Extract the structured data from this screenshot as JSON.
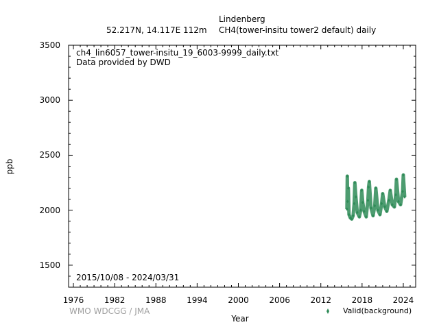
{
  "header": {
    "station": "Lindenberg",
    "location": "52.217N, 14.117E 112m",
    "parameter": "CH4(tower-insitu tower2 default) daily"
  },
  "annotations": {
    "filename": "ch4_lin6057_tower-insitu_19_6003-9999_daily.txt",
    "provider": "Data provided by DWD",
    "period": "2015/10/08 - 2024/03/31"
  },
  "footer": {
    "credit": "WMO WDCGG / JMA"
  },
  "colors": {
    "series": "#2e8b57",
    "credit": "#a0a0a0"
  },
  "chart_data": {
    "type": "scatter",
    "xlabel": "Year",
    "ylabel": "ppb",
    "xlim": [
      1975.3,
      2025.8
    ],
    "ylim": [
      1300,
      3500
    ],
    "xticks": [
      1976,
      1982,
      1988,
      1994,
      2000,
      2006,
      2012,
      2018,
      2024
    ],
    "yticks": [
      1500,
      2000,
      2500,
      3000,
      3500
    ],
    "grid": false,
    "legend": "bottom-right",
    "series": [
      {
        "name": "Valid(background)",
        "marker": "diamond",
        "range": [
          "2015-10-08",
          "2024-03-31"
        ],
        "points": [
          [
            2015.8,
            2010
          ],
          [
            2015.85,
            2310
          ],
          [
            2015.9,
            2080
          ],
          [
            2016.0,
            2200
          ],
          [
            2016.1,
            1960
          ],
          [
            2016.3,
            1930
          ],
          [
            2016.5,
            1920
          ],
          [
            2016.7,
            1950
          ],
          [
            2016.85,
            2060
          ],
          [
            2016.95,
            2250
          ],
          [
            2017.1,
            2120
          ],
          [
            2017.3,
            1980
          ],
          [
            2017.6,
            1940
          ],
          [
            2017.8,
            2000
          ],
          [
            2017.95,
            2180
          ],
          [
            2018.1,
            2070
          ],
          [
            2018.3,
            1990
          ],
          [
            2018.6,
            1940
          ],
          [
            2018.85,
            2090
          ],
          [
            2018.95,
            2210
          ],
          [
            2019.05,
            2260
          ],
          [
            2019.3,
            2020
          ],
          [
            2019.6,
            1950
          ],
          [
            2019.85,
            2040
          ],
          [
            2020.0,
            2200
          ],
          [
            2020.3,
            2000
          ],
          [
            2020.6,
            1960
          ],
          [
            2020.85,
            2060
          ],
          [
            2021.0,
            2150
          ],
          [
            2021.3,
            2030
          ],
          [
            2021.6,
            1990
          ],
          [
            2021.9,
            2090
          ],
          [
            2022.1,
            2180
          ],
          [
            2022.4,
            2050
          ],
          [
            2022.7,
            2030
          ],
          [
            2022.9,
            2140
          ],
          [
            2023.0,
            2280
          ],
          [
            2023.3,
            2080
          ],
          [
            2023.6,
            2050
          ],
          [
            2023.9,
            2170
          ],
          [
            2024.0,
            2320
          ],
          [
            2024.2,
            2120
          ]
        ]
      }
    ]
  }
}
